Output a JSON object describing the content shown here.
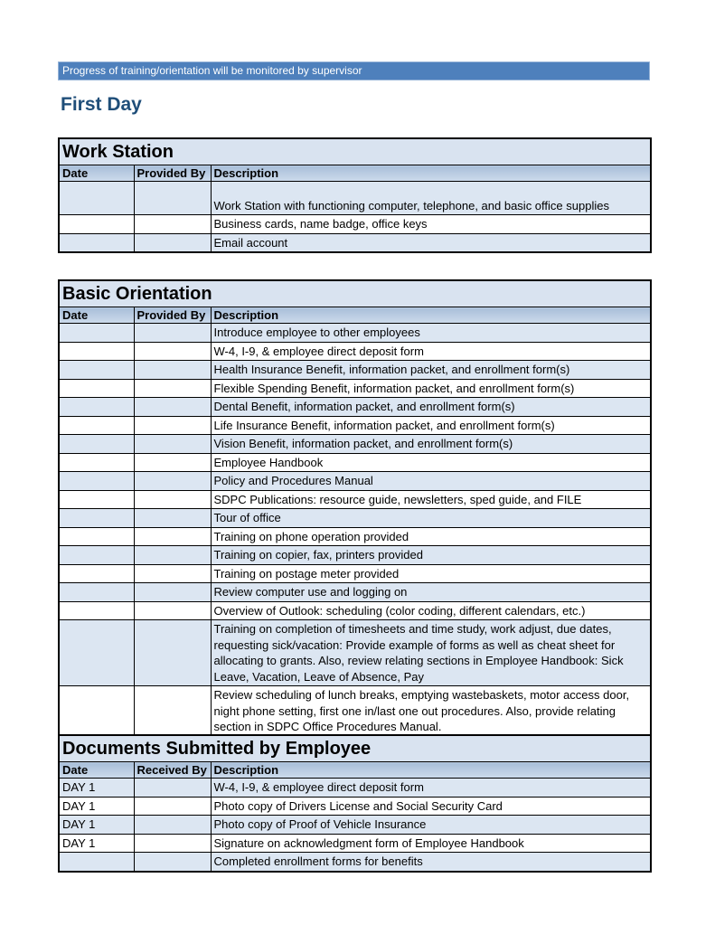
{
  "banner": {
    "text": "Progress of training/orientation will be monitored by supervisor"
  },
  "heading": "First Day",
  "colors": {
    "banner_bg": "#4E80BC",
    "banner_border": "#95B3D7",
    "heading_color": "#1F4E79",
    "title_row_bg": "#D9E3F0",
    "header_top": "#A8BED9",
    "header_bottom": "#CDDBEC",
    "band_bg": "#DCE6F2",
    "border_color": "#000000"
  },
  "tables": [
    {
      "title": "Work Station",
      "columns": [
        "Date",
        "Provided By",
        "Description"
      ],
      "rows": [
        {
          "date": "",
          "by": "",
          "description": "Work Station with functioning computer, telephone, and basic office supplies",
          "tall": true
        },
        {
          "date": "",
          "by": "",
          "description": "Business cards, name badge, office keys"
        },
        {
          "date": "",
          "by": "",
          "description": "Email account"
        }
      ]
    },
    {
      "title": "Basic Orientation",
      "columns": [
        "Date",
        "Provided By",
        "Description"
      ],
      "rows": [
        {
          "date": "",
          "by": "",
          "description": "Introduce employee to other employees"
        },
        {
          "date": "",
          "by": "",
          "description": "W-4, I-9, & employee direct deposit form"
        },
        {
          "date": "",
          "by": "",
          "description": "Health Insurance Benefit, information packet, and enrollment form(s)"
        },
        {
          "date": "",
          "by": "",
          "description": "Flexible Spending Benefit, information packet, and enrollment form(s)"
        },
        {
          "date": "",
          "by": "",
          "description": "Dental Benefit, information packet, and enrollment form(s)"
        },
        {
          "date": "",
          "by": "",
          "description": "Life Insurance Benefit, information packet, and enrollment form(s)"
        },
        {
          "date": "",
          "by": "",
          "description": "Vision Benefit, information packet, and enrollment form(s)"
        },
        {
          "date": "",
          "by": "",
          "description": "Employee Handbook"
        },
        {
          "date": "",
          "by": "",
          "description": "Policy and Procedures Manual"
        },
        {
          "date": "",
          "by": "",
          "description": "SDPC Publications: resource guide, newsletters, sped guide, and FILE"
        },
        {
          "date": "",
          "by": "",
          "description": "Tour of office"
        },
        {
          "date": "",
          "by": "",
          "description": "Training on phone operation provided"
        },
        {
          "date": "",
          "by": "",
          "description": "Training on copier, fax, printers provided"
        },
        {
          "date": "",
          "by": "",
          "description": "Training on postage meter provided"
        },
        {
          "date": "",
          "by": "",
          "description": "Review computer use and logging on"
        },
        {
          "date": "",
          "by": "",
          "description": "Overview of Outlook: scheduling (color coding, different calendars, etc.)"
        },
        {
          "date": "",
          "by": "",
          "description": "Training on completion of timesheets and time study, work adjust, due dates, requesting sick/vacation: Provide example of forms as well as cheat sheet for allocating to grants. Also, review relating sections in Employee Handbook: Sick Leave, Vacation, Leave of Absence, Pay"
        },
        {
          "date": "",
          "by": "",
          "description": "Review scheduling of lunch breaks, emptying wastebaskets, motor access door, night phone setting, first one in/last one out procedures. Also, provide relating section in SDPC Office Procedures Manual."
        }
      ]
    },
    {
      "title": "Documents Submitted by Employee",
      "columns": [
        "Date",
        "Received By",
        "Description"
      ],
      "rows": [
        {
          "date": "DAY 1",
          "by": "",
          "description": "W-4, I-9, & employee direct deposit form"
        },
        {
          "date": "DAY 1",
          "by": "",
          "description": "Photo copy of Drivers License and Social Security Card"
        },
        {
          "date": "DAY 1",
          "by": "",
          "description": "Photo copy of Proof of Vehicle Insurance"
        },
        {
          "date": "DAY 1",
          "by": "",
          "description": "Signature on acknowledgment form of Employee Handbook"
        },
        {
          "date": "",
          "by": "",
          "description": "Completed enrollment forms for benefits"
        }
      ]
    }
  ]
}
